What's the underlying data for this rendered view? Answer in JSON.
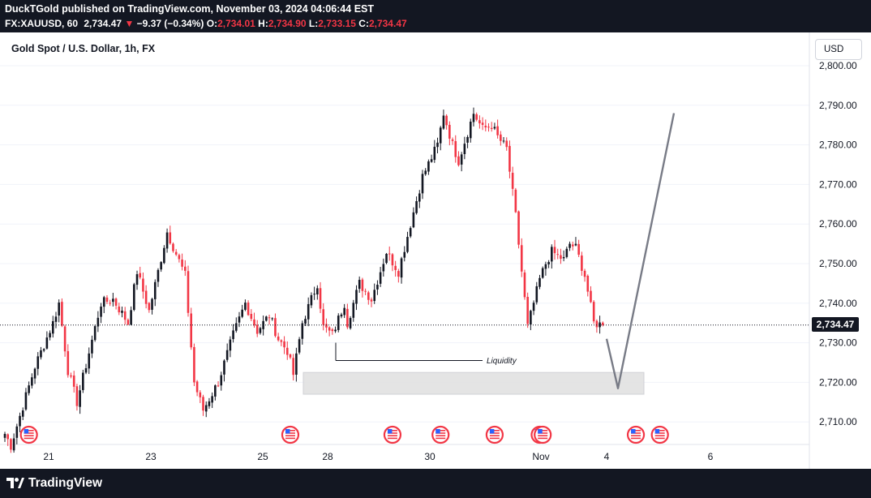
{
  "header": {
    "publisher": "DuckTGold published on TradingView.com, November 03, 2024 04:06:44 EST",
    "symbol": "FX:XAUUSD, 60",
    "last": "2,734.47",
    "change": "−9.37 (−0.34%)",
    "o_label": "O:",
    "o_value": "2,734.01",
    "h_label": "H:",
    "h_value": "2,734.90",
    "l_label": "L:",
    "l_value": "2,733.15",
    "c_label": "C:",
    "c_value": "2,734.47"
  },
  "chart": {
    "title": "Gold Spot / U.S. Dollar, 1h, FX",
    "currency": "USD",
    "current_price": "2,734.47",
    "annotation": "Liquidity",
    "colors": {
      "up": "#131722",
      "down": "#f23645",
      "projection": "#787b86",
      "zone": "#e0e0e0",
      "badge": "#131722"
    }
  },
  "chart_data": {
    "type": "candlestick",
    "y_ticks": [
      "2,800.00",
      "2,790.00",
      "2,780.00",
      "2,770.00",
      "2,760.00",
      "2,750.00",
      "2,740.00",
      "2,730.00",
      "2,720.00",
      "2,710.00"
    ],
    "y_values": [
      2800,
      2790,
      2780,
      2770,
      2760,
      2750,
      2740,
      2730,
      2720,
      2710
    ],
    "ylim": [
      2704,
      2806
    ],
    "x_ticks": [
      "21",
      "23",
      "25",
      "28",
      "30",
      "Nov",
      "4",
      "6"
    ],
    "last_price": 2734.47,
    "liquidity_level": 2725.5,
    "zone": [
      2717,
      2722.5
    ],
    "projection": [
      2731,
      2718.5,
      2788
    ],
    "waypoints": [
      [
        0,
        2707
      ],
      [
        2,
        2704
      ],
      [
        10,
        2724
      ],
      [
        16,
        2735
      ],
      [
        18,
        2740
      ],
      [
        21,
        2723
      ],
      [
        24,
        2715
      ],
      [
        32,
        2740
      ],
      [
        36,
        2741
      ],
      [
        41,
        2735
      ],
      [
        44,
        2748
      ],
      [
        48,
        2738
      ],
      [
        54,
        2758
      ],
      [
        60,
        2747
      ],
      [
        63,
        2720
      ],
      [
        66,
        2713
      ],
      [
        71,
        2720
      ],
      [
        76,
        2732
      ],
      [
        80,
        2740
      ],
      [
        84,
        2733
      ],
      [
        88,
        2737
      ],
      [
        91,
        2731
      ],
      [
        94,
        2728
      ],
      [
        96,
        2722
      ],
      [
        99,
        2735
      ],
      [
        104,
        2745
      ],
      [
        106,
        2734
      ],
      [
        109,
        2732
      ],
      [
        113,
        2740
      ],
      [
        114,
        2735
      ],
      [
        118,
        2745
      ],
      [
        122,
        2741
      ],
      [
        127,
        2753
      ],
      [
        131,
        2748
      ],
      [
        134,
        2757
      ],
      [
        139,
        2772
      ],
      [
        144,
        2780
      ],
      [
        146,
        2788
      ],
      [
        149,
        2780
      ],
      [
        151,
        2776
      ],
      [
        156,
        2788
      ],
      [
        159,
        2784
      ],
      [
        162,
        2785
      ],
      [
        164,
        2782
      ],
      [
        167,
        2779
      ],
      [
        170,
        2762
      ],
      [
        172,
        2748
      ],
      [
        174,
        2734
      ],
      [
        178,
        2746
      ],
      [
        180,
        2750
      ],
      [
        182,
        2753
      ],
      [
        186,
        2751
      ],
      [
        188,
        2755
      ],
      [
        190,
        2754
      ],
      [
        193,
        2747
      ],
      [
        196,
        2735
      ],
      [
        199,
        2734.5
      ]
    ],
    "events": [
      {
        "name": "us-flag",
        "index": 8
      },
      {
        "name": "us-flag",
        "index": 95
      },
      {
        "name": "us-flag",
        "index": 129
      },
      {
        "name": "us-flag",
        "index": 145
      },
      {
        "name": "us-flag",
        "index": 163
      },
      {
        "name": "us-flag",
        "index": 178
      },
      {
        "name": "us-flag",
        "index": 179
      },
      {
        "name": "us-flag",
        "index": 210
      },
      {
        "name": "us-flag",
        "index": 218
      }
    ]
  },
  "footer": {
    "brand": "TradingView"
  }
}
